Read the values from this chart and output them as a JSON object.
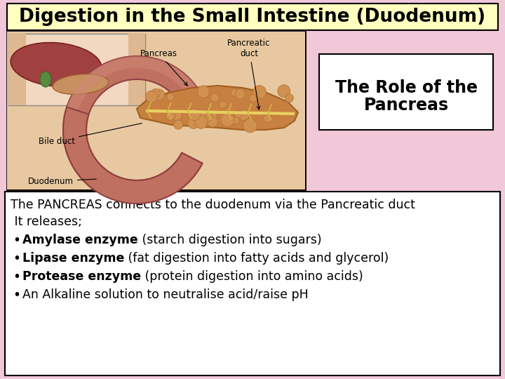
{
  "title": "Digestion in the Small Intestine (Duodenum)",
  "subtitle_line1": "The Role of the",
  "subtitle_line2": "Pancreas",
  "bg_color": "#F0C8D8",
  "title_bg": "#FFFFC0",
  "body_bg": "#FFFFFF",
  "text_line1": "The PANCREAS connects to the duodenum via the Pancreatic duct",
  "text_line2": " It releases;",
  "bullet1_bold": "Amylase enzyme",
  "bullet1_rest": " (starch digestion into sugars)",
  "bullet2_bold": "Lipase enzyme",
  "bullet2_rest": " (fat digestion into fatty acids and glycerol)",
  "bullet3_bold": "Protease enzyme",
  "bullet3_rest": " (protein digestion into amino acids)",
  "bullet4": "An Alkaline solution to neutralise acid/raise pH",
  "title_fontsize": 19,
  "body_fontsize": 12.5,
  "subtitle_fontsize": 17
}
